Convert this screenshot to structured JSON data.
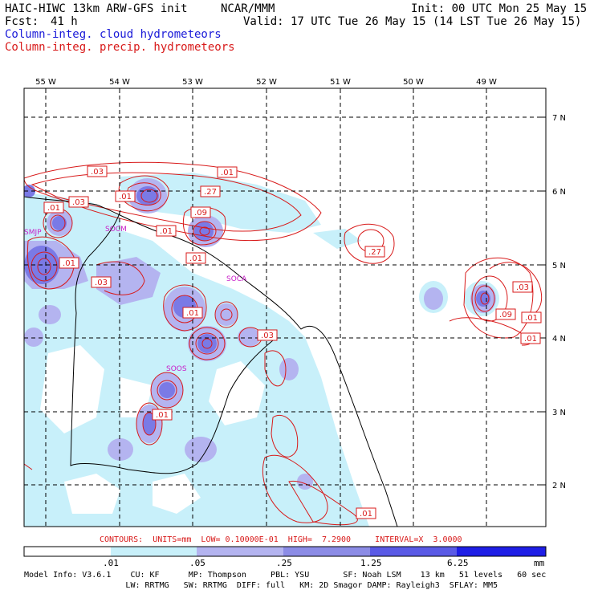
{
  "header": {
    "title_left": "HAIC-HIWC 13km ARW-GFS init",
    "org": "NCAR/MMM",
    "init": "Init: 00 UTC Mon 25 May 15",
    "fcst_label": "Fcst:",
    "fcst_value": "41 h",
    "valid": "Valid: 17 UTC Tue 26 May 15 (14 LST Tue 26 May 15)",
    "legend_cloud": "Column-integ. cloud hydrometeors",
    "legend_precip": "Column-integ. precip. hydrometeors"
  },
  "map": {
    "lon_labels": [
      "55 W",
      "54 W",
      "53 W",
      "52 W",
      "51 W",
      "50 W",
      "49 W"
    ],
    "lat_labels": [
      "7 N",
      "6 N",
      "5 N",
      "4 N",
      "3 N",
      "2 N"
    ],
    "station_labels": [
      "SMJP",
      "SOCM",
      "SOCA",
      "SOOS"
    ],
    "contour_labels": [
      ".03",
      ".01",
      ".03",
      ".01",
      ".27",
      ".01",
      ".09",
      ".01",
      ".01",
      ".01",
      ".03",
      ".01",
      ".03",
      ".01",
      ".27",
      ".03",
      ".09",
      ".01",
      ".01",
      ".01"
    ]
  },
  "contours_info": "CONTOURS:  UNITS=mm  LOW= 0.10000E-01  HIGH=  7.2900     INTERVAL=X  3.0000",
  "colorbar": {
    "ticks": [
      ".01",
      ".05",
      ".25",
      "1.25",
      "6.25"
    ],
    "unit": "mm",
    "colors": [
      "#ffffff",
      "#c8f0fa",
      "#b4b4f0",
      "#8c8ce6",
      "#5a5ae6",
      "#1e1ee6"
    ]
  },
  "footer": {
    "line1": "Model Info: V3.6.1    CU: KF      MP: Thompson     PBL: YSU       SF: Noah LSM    13 km   51 levels   60 sec",
    "line2": "                     LW: RRTMG   SW: RRTMG  DIFF: full   KM: 2D Smagor DAMP: Rayleigh3  SFLAY: MM5"
  }
}
